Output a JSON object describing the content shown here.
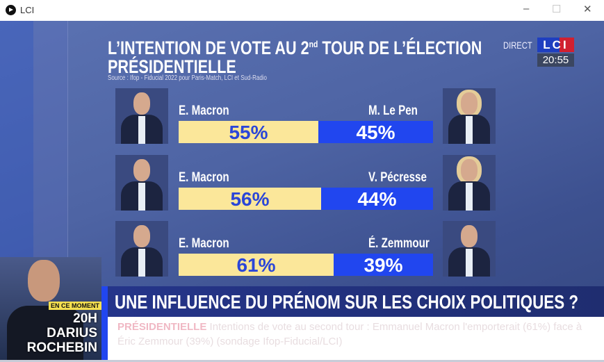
{
  "window": {
    "title": "LCI",
    "controls": {
      "minimize": "–",
      "maximize": "☐",
      "close": "✕"
    }
  },
  "broadcast": {
    "title_line1_pre": "L’INTENTION DE VOTE AU 2",
    "title_sup": "nd",
    "title_line1_post": " TOUR DE L’ÉLECTION",
    "title_line2": "PRÉSIDENTIELLE",
    "source": "Source : Ifop - Fiducial 2022 pour Paris-Match, LCI et Sud-Radio",
    "direct": "DIRECT",
    "logo": "LCI",
    "time": "20:55"
  },
  "chart_data": {
    "type": "bar",
    "rows": [
      {
        "left": "E. Macron",
        "left_value": 55,
        "left_label": "55%",
        "right": "M. Le Pen",
        "right_value": 45,
        "right_label": "45%"
      },
      {
        "left": "E. Macron",
        "left_value": 56,
        "left_label": "56%",
        "right": "V. Pécresse",
        "right_value": 44,
        "right_label": "44%"
      },
      {
        "left": "E. Macron",
        "left_value": 61,
        "left_label": "61%",
        "right": "É. Zemmour",
        "right_value": 39,
        "right_label": "39%"
      }
    ],
    "colors": {
      "left": "#fbe79a",
      "right": "#2146ef"
    }
  },
  "lower_third": {
    "badge": "EN CE MOMENT",
    "show_line1": "20H DARIUS",
    "show_line2": "ROCHEBIN",
    "headline": "UNE INFLUENCE DU PRÉNOM SUR LES CHOIX POLITIQUES ?",
    "ticker_tag": "PRÉSIDENTIELLE",
    "ticker_text": "Intentions de vote au second tour : Emmanuel Macron l'emporterait (61%) face à Éric Zemmour (39%) (sondage Ifop-Fiducial/LCI)"
  }
}
